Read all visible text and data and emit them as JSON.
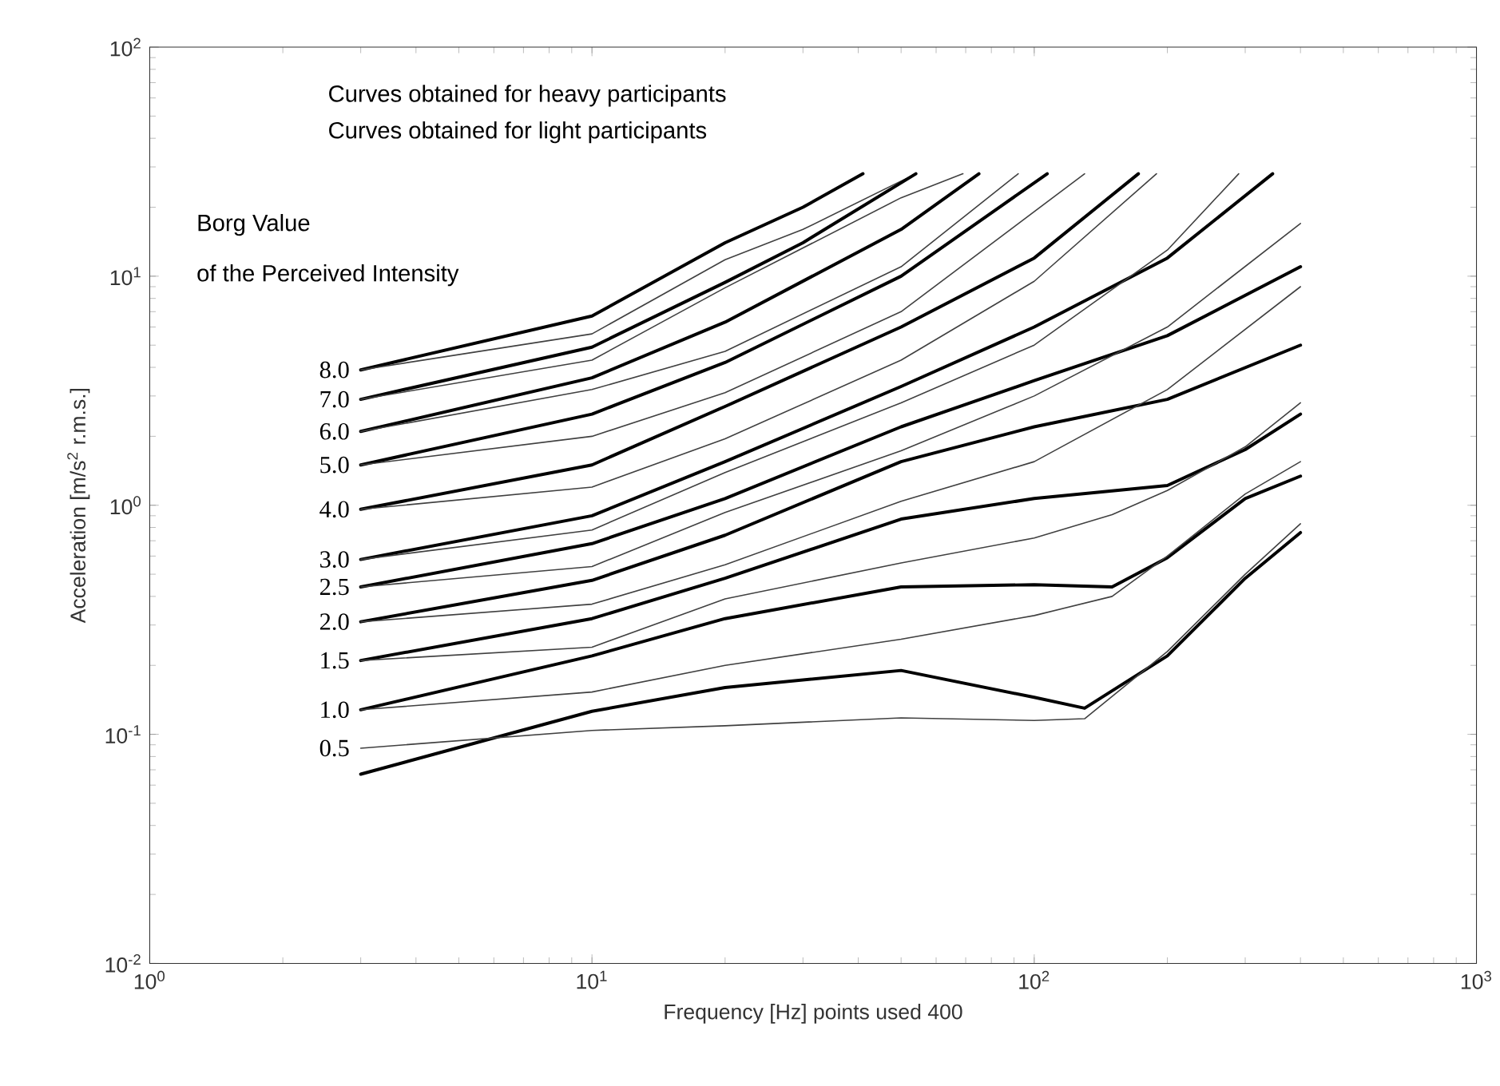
{
  "chart_data": {
    "type": "line",
    "xlabel": "Frequency [Hz]  points used 400",
    "ylabel": "Acceleration [m/s$^{2}$ r.m.s.]",
    "log": "xy",
    "marker": "none",
    "line_style": "solid",
    "xlim": [
      1,
      1000
    ],
    "ylim": [
      0.01,
      100
    ],
    "xticks": [
      {
        "value": 1,
        "label": "10$^{0}$"
      },
      {
        "value": 10,
        "label": "10$^{1}$"
      },
      {
        "value": 100,
        "label": "10$^{2}$"
      },
      {
        "value": 1000,
        "label": "10$^{3}$"
      }
    ],
    "yticks": [
      {
        "value": 0.01,
        "label": "10$^{-2}$"
      },
      {
        "value": 0.1,
        "label": "10$^{-1}$"
      },
      {
        "value": 1,
        "label": "10$^{0}$"
      },
      {
        "value": 10,
        "label": "10$^{1}$"
      },
      {
        "value": 100,
        "label": "10$^{2}$"
      }
    ],
    "series": [
      {
        "name": "8.0",
        "color": "#000000",
        "x": [
          3,
          10,
          20,
          30,
          41
        ],
        "values": [
          3.9,
          6.7,
          14,
          20,
          28
        ]
      },
      {
        "color": "#404040",
        "x": [
          3,
          10,
          20,
          30,
          54
        ],
        "values": [
          3.9,
          5.6,
          11.8,
          16,
          28
        ]
      },
      {
        "name": "7.0",
        "color": "#000000",
        "x": [
          3,
          10,
          20,
          30,
          54
        ],
        "values": [
          2.9,
          4.9,
          9.4,
          14,
          28
        ]
      },
      {
        "color": "#404040",
        "x": [
          3,
          10,
          20,
          50,
          69
        ],
        "values": [
          2.9,
          4.3,
          8.9,
          22,
          28
        ]
      },
      {
        "name": "6.0",
        "color": "#000000",
        "x": [
          3,
          10,
          20,
          50,
          75
        ],
        "values": [
          2.1,
          3.6,
          6.3,
          16,
          28
        ]
      },
      {
        "color": "#404040",
        "x": [
          3,
          10,
          20,
          50,
          92
        ],
        "values": [
          2.1,
          3.2,
          4.7,
          11,
          28
        ]
      },
      {
        "name": "5.0",
        "color": "#000000",
        "x": [
          3,
          10,
          20,
          50,
          107
        ],
        "values": [
          1.5,
          2.5,
          4.2,
          10,
          28
        ]
      },
      {
        "color": "#404040",
        "x": [
          3,
          10,
          20,
          50,
          130
        ],
        "values": [
          1.5,
          2.0,
          3.1,
          7.0,
          28
        ]
      },
      {
        "name": "4.0",
        "color": "#000000",
        "x": [
          3,
          10,
          20,
          50,
          100,
          172
        ],
        "values": [
          0.96,
          1.5,
          2.7,
          6.0,
          12,
          28
        ]
      },
      {
        "color": "#404040",
        "x": [
          3,
          10,
          20,
          50,
          100,
          189
        ],
        "values": [
          0.96,
          1.2,
          1.95,
          4.3,
          9.5,
          28
        ]
      },
      {
        "name": "3.0",
        "color": "#000000",
        "x": [
          3,
          10,
          20,
          50,
          100,
          200,
          346
        ],
        "values": [
          0.58,
          0.9,
          1.55,
          3.3,
          6.0,
          12,
          28
        ]
      },
      {
        "color": "#404040",
        "x": [
          3,
          10,
          20,
          50,
          100,
          200,
          290
        ],
        "values": [
          0.58,
          0.78,
          1.39,
          2.8,
          5.0,
          13,
          28
        ]
      },
      {
        "name": "2.5",
        "color": "#000000",
        "x": [
          3,
          10,
          20,
          50,
          100,
          200,
          400
        ],
        "values": [
          0.44,
          0.68,
          1.07,
          2.2,
          3.5,
          5.5,
          11
        ]
      },
      {
        "color": "#404040",
        "x": [
          3,
          10,
          20,
          50,
          100,
          200,
          400
        ],
        "values": [
          0.44,
          0.54,
          0.93,
          1.73,
          3.0,
          6.0,
          17
        ]
      },
      {
        "name": "2.0",
        "color": "#000000",
        "x": [
          3,
          10,
          20,
          50,
          100,
          200,
          400
        ],
        "values": [
          0.31,
          0.47,
          0.74,
          1.55,
          2.2,
          2.9,
          5.0
        ]
      },
      {
        "color": "#404040",
        "x": [
          3,
          10,
          20,
          50,
          100,
          200,
          400
        ],
        "values": [
          0.31,
          0.37,
          0.55,
          1.04,
          1.55,
          3.2,
          9.0
        ]
      },
      {
        "name": "1.5",
        "color": "#000000",
        "x": [
          3,
          10,
          20,
          50,
          100,
          200,
          300,
          400
        ],
        "values": [
          0.21,
          0.32,
          0.48,
          0.87,
          1.07,
          1.22,
          1.75,
          2.5
        ]
      },
      {
        "color": "#404040",
        "x": [
          3,
          10,
          20,
          50,
          100,
          150,
          200,
          300,
          400
        ],
        "values": [
          0.21,
          0.24,
          0.39,
          0.56,
          0.72,
          0.91,
          1.16,
          1.8,
          2.8
        ]
      },
      {
        "name": "1.0",
        "color": "#000000",
        "x": [
          3,
          10,
          20,
          50,
          100,
          150,
          200,
          300,
          400
        ],
        "values": [
          0.128,
          0.22,
          0.32,
          0.44,
          0.45,
          0.44,
          0.59,
          1.07,
          1.34
        ]
      },
      {
        "color": "#404040",
        "x": [
          3,
          10,
          20,
          50,
          100,
          150,
          200,
          300,
          400
        ],
        "values": [
          0.128,
          0.153,
          0.2,
          0.26,
          0.33,
          0.4,
          0.6,
          1.12,
          1.55
        ]
      },
      {
        "color": "#000000",
        "x": [
          3,
          10,
          20,
          50,
          100,
          130,
          200,
          300,
          400
        ],
        "values": [
          0.067,
          0.126,
          0.16,
          0.19,
          0.145,
          0.13,
          0.22,
          0.48,
          0.76
        ]
      },
      {
        "name": "0.5",
        "color": "#404040",
        "x": [
          3,
          10,
          20,
          50,
          100,
          130,
          200,
          300,
          400
        ],
        "values": [
          0.087,
          0.104,
          0.109,
          0.118,
          0.115,
          0.117,
          0.23,
          0.5,
          0.83
        ]
      }
    ],
    "annotations": [
      "Curves obtained for heavy participants",
      "Curves obtained for light participants",
      "Borg Value",
      "of the Perceived Intensity"
    ]
  }
}
